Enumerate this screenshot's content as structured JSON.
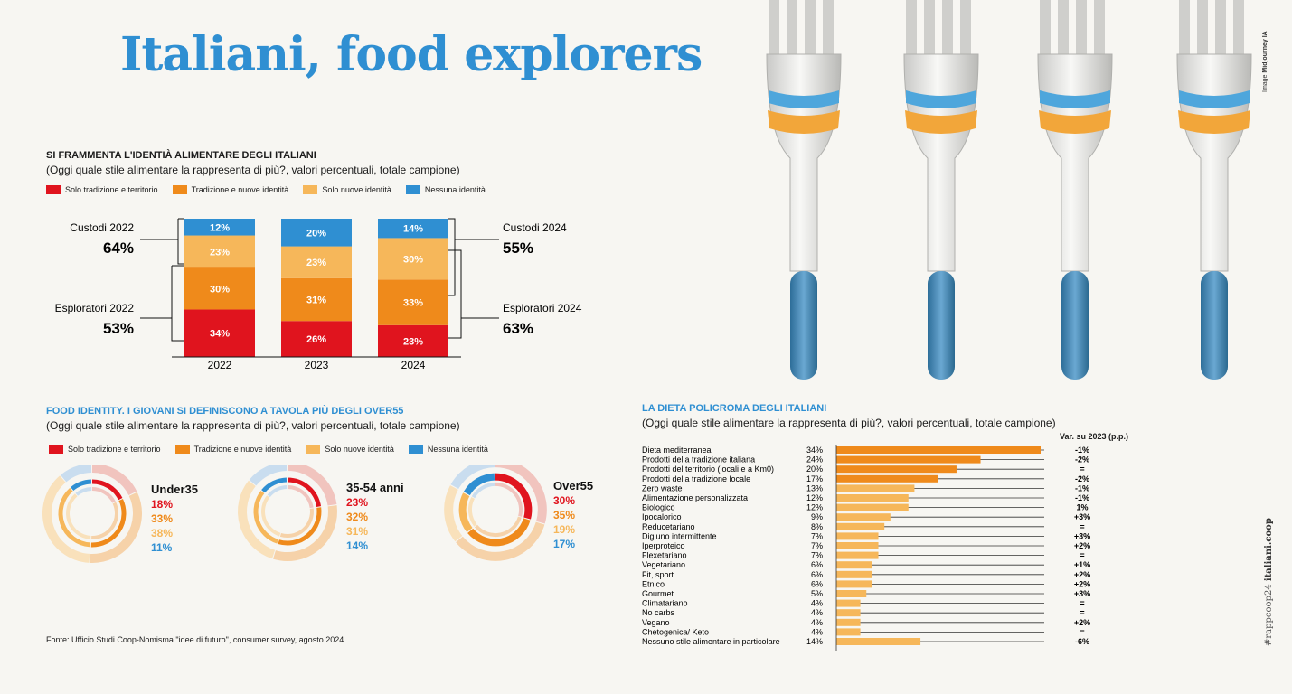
{
  "title": "Italiani, food explorers",
  "image_credit": {
    "prefix": "Image",
    "name": "Midjourney IA"
  },
  "hashtag": {
    "tag": "#rappcoop24",
    "site": "italiani.coop"
  },
  "source": "Fonte: Ufficio Studi Coop-Nomisma \"idee di futuro\", consumer survey, agosto 2024",
  "colors": {
    "red": "#e0141e",
    "orange": "#ef8a1b",
    "light_orange": "#f6b75a",
    "blue": "#2f8fd2"
  },
  "legend": [
    "Solo tradizione e territorio",
    "Tradizione e nuove identità",
    "Solo nuove identità",
    "Nessuna identità"
  ],
  "section1": {
    "title": "SI FRAMMENTA L'IDENTIÀ ALIMENTARE DEGLI ITALIANI",
    "subtitle": "(Oggi quale stile alimentare la rappresenta di più?, valori percentuali, totale campione)",
    "annotations": {
      "custodi_2022": {
        "label": "Custodi 2022",
        "value": "64%"
      },
      "esploratori_2022": {
        "label": "Esploratori 2022",
        "value": "53%"
      },
      "custodi_2024": {
        "label": "Custodi 2024",
        "value": "55%"
      },
      "esploratori_2024": {
        "label": "Esploratori 2024",
        "value": "63%"
      }
    }
  },
  "section2": {
    "title": "FOOD IDENTITY. I GIOVANI SI DEFINISCONO A TAVOLA PIÙ DEGLI OVER55",
    "subtitle": "(Oggi quale stile alimentare la rappresenta di più?, valori percentuali, totale campione)"
  },
  "section3": {
    "title": "LA DIETA POLICROMA DEGLI ITALIANI",
    "subtitle": "(Oggi quale stile alimentare la rappresenta di più?, valori percentuali, totale campione)",
    "var_header": "Var. su 2023 (p.p.)"
  },
  "chart_data": [
    {
      "type": "bar",
      "stacked": true,
      "categories": [
        "2022",
        "2023",
        "2024"
      ],
      "series": [
        {
          "name": "Solo tradizione e territorio",
          "values": [
            34,
            26,
            23
          ],
          "labels": [
            "34%",
            "26%",
            "23%"
          ]
        },
        {
          "name": "Tradizione e nuove identità",
          "values": [
            30,
            31,
            33
          ],
          "labels": [
            "30%",
            "31%",
            "33%"
          ]
        },
        {
          "name": "Solo nuove identità",
          "values": [
            23,
            23,
            30
          ],
          "labels": [
            "23%",
            "23%",
            "30%"
          ]
        },
        {
          "name": "Nessuna identità",
          "values": [
            12,
            20,
            14
          ],
          "labels": [
            "12%",
            "20%",
            "14%"
          ]
        }
      ]
    },
    {
      "type": "pie",
      "groups": [
        {
          "name": "Under35",
          "values": [
            18,
            33,
            38,
            11
          ],
          "labels": [
            "18%",
            "33%",
            "38%",
            "11%"
          ]
        },
        {
          "name": "35-54 anni",
          "values": [
            23,
            32,
            31,
            14
          ],
          "labels": [
            "23%",
            "32%",
            "31%",
            "14%"
          ]
        },
        {
          "name": "Over55",
          "values": [
            30,
            35,
            19,
            17
          ],
          "labels": [
            "30%",
            "35%",
            "19%",
            "17%"
          ]
        }
      ]
    },
    {
      "type": "bar",
      "orientation": "horizontal",
      "categories": [
        "Dieta mediterranea",
        "Prodotti della tradizione italiana",
        "Prodotti del territorio (locali e a Km0)",
        "Prodotti della tradizione locale",
        "Zero waste",
        "Alimentazione personalizzata",
        "Biologico",
        "Ipocalorico",
        "Reducetariano",
        "Digiuno intermittente",
        "Iperproteico",
        "Flexetariano",
        "Vegetariano",
        "Fit, sport",
        "Etnico",
        "Gourmet",
        "Climatariano",
        "No carbs",
        "Vegano",
        "Chetogenica/ Keto",
        "Nessuno stile alimentare in particolare"
      ],
      "values": [
        34,
        24,
        20,
        17,
        13,
        12,
        12,
        9,
        8,
        7,
        7,
        7,
        6,
        6,
        6,
        5,
        4,
        4,
        4,
        4,
        14
      ],
      "value_labels": [
        "34%",
        "24%",
        "20%",
        "17%",
        "13%",
        "12%",
        "12%",
        "9%",
        "8%",
        "7%",
        "7%",
        "7%",
        "6%",
        "6%",
        "6%",
        "5%",
        "4%",
        "4%",
        "4%",
        "4%",
        "14%"
      ],
      "variation": [
        "-1%",
        "-2%",
        "=",
        "-2%",
        "-1%",
        "-1%",
        "1%",
        "+3%",
        "=",
        "+3%",
        "+2%",
        "=",
        "+1%",
        "+2%",
        "+2%",
        "+3%",
        "=",
        "=",
        "+2%",
        "=",
        "-6%"
      ]
    }
  ]
}
